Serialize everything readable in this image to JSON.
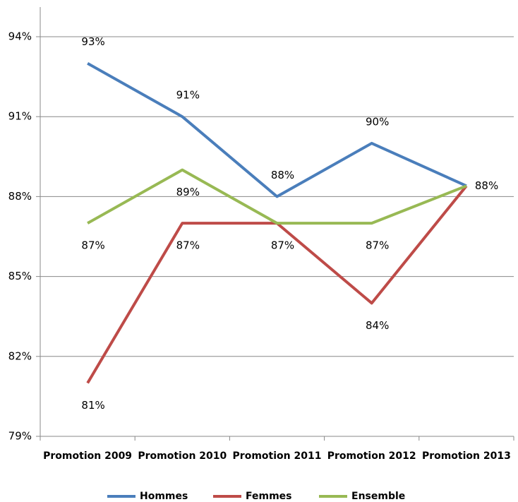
{
  "chart_data": {
    "type": "line",
    "categories": [
      "Promotion 2009",
      "Promotion 2010",
      "Promotion 2011",
      "Promotion 2012",
      "Promotion 2013"
    ],
    "series": [
      {
        "name": "Hommes",
        "color": "#4a7ebb",
        "values": [
          93,
          91,
          88,
          90,
          88.4
        ],
        "value_labels": [
          "93%",
          "91%",
          "88%",
          "90%",
          "88%"
        ]
      },
      {
        "name": "Femmes",
        "color": "#be4b48",
        "values": [
          81,
          87,
          87,
          84,
          88.4
        ],
        "value_labels": [
          "81%",
          "87%",
          null,
          "84%",
          null
        ]
      },
      {
        "name": "Ensemble",
        "color": "#98b954",
        "values": [
          87,
          89,
          87,
          87,
          88.4
        ],
        "value_labels": [
          "87%",
          "89%",
          "87%",
          "87%",
          null
        ]
      }
    ],
    "ylim": [
      79,
      94
    ],
    "yticks": [
      {
        "value": 79,
        "label": "79%"
      },
      {
        "value": 82,
        "label": "82%"
      },
      {
        "value": 85,
        "label": "85%"
      },
      {
        "value": 88,
        "label": "88%"
      },
      {
        "value": 91,
        "label": "91%"
      },
      {
        "value": 94,
        "label": "94%"
      }
    ],
    "grid": true,
    "legend": "bottom"
  }
}
